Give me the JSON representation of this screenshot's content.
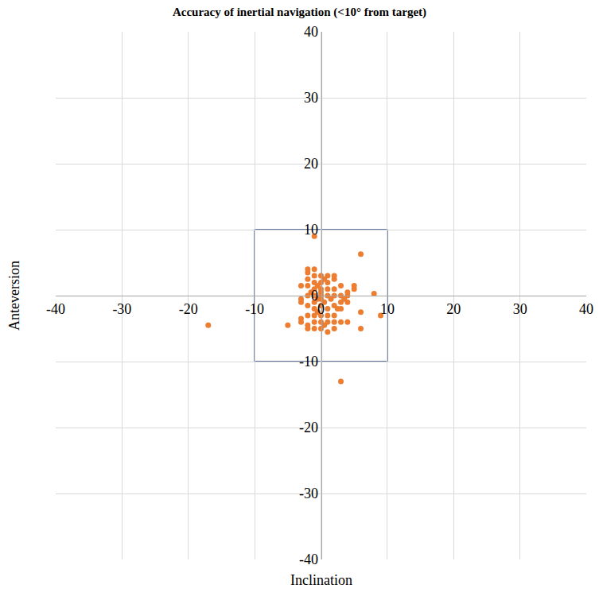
{
  "chart_data": {
    "type": "scatter",
    "title": "Accuracy of inertial navigation (<10° from target)",
    "xlabel": "Inclination",
    "ylabel": "Anteversion",
    "x": [
      -1,
      6,
      -17,
      3,
      9,
      8,
      6,
      6,
      -5,
      -3,
      -3,
      -2,
      -2,
      -1,
      -1,
      -1,
      -1,
      0,
      0,
      0,
      1,
      1,
      2,
      2,
      3,
      4,
      3,
      2,
      1,
      0,
      -1,
      -2,
      -3,
      -3,
      -2,
      -1,
      0,
      0,
      1,
      2,
      3,
      4,
      5,
      5,
      4,
      3,
      2,
      1,
      0,
      -1,
      -2,
      -3,
      -1,
      0,
      1,
      2,
      -1,
      0,
      1,
      2,
      -2,
      -2,
      -1,
      -2,
      0,
      0.5,
      1.5,
      -0.5,
      2.5,
      3.5,
      4,
      -0.5,
      0.5,
      -1.5,
      1,
      3,
      -2,
      2,
      0.5,
      -0.5
    ],
    "values": [
      9,
      6.3,
      -4.5,
      -13,
      -3,
      0.3,
      -2.5,
      -5,
      -4.5,
      -4,
      -3.5,
      -4.5,
      -5,
      -5,
      -4,
      -2,
      -3,
      -3,
      -4,
      -5,
      -5.5,
      -4,
      -5,
      -3,
      -4,
      -4,
      -2,
      -1.5,
      -2,
      -1.5,
      -1,
      -1.5,
      -1,
      -0.5,
      0,
      0,
      0,
      -0.5,
      0,
      0,
      0,
      0,
      1,
      1.5,
      -1,
      1.5,
      1,
      1,
      1,
      1,
      1.5,
      1.5,
      2,
      2,
      2,
      2.5,
      3,
      3,
      3,
      3,
      3.5,
      4,
      4,
      2.5,
      0.5,
      -1,
      -0.5,
      -2.5,
      -2,
      -0.5,
      0.5,
      1.5,
      2.5,
      0.5,
      -3,
      -1,
      -3,
      -4,
      -4.5,
      -0.5
    ],
    "color": "#ed7d31",
    "marker": "circle",
    "target_box": {
      "x": [
        -10,
        10
      ],
      "y": [
        -10,
        10
      ]
    },
    "xlim": [
      -40,
      40
    ],
    "ylim": [
      -40,
      40
    ],
    "xticks": [
      -40,
      -30,
      -20,
      -10,
      0,
      10,
      20,
      30,
      40
    ],
    "yticks": [
      -40,
      -30,
      -20,
      -10,
      0,
      10,
      20,
      30,
      40
    ],
    "grid": true
  }
}
